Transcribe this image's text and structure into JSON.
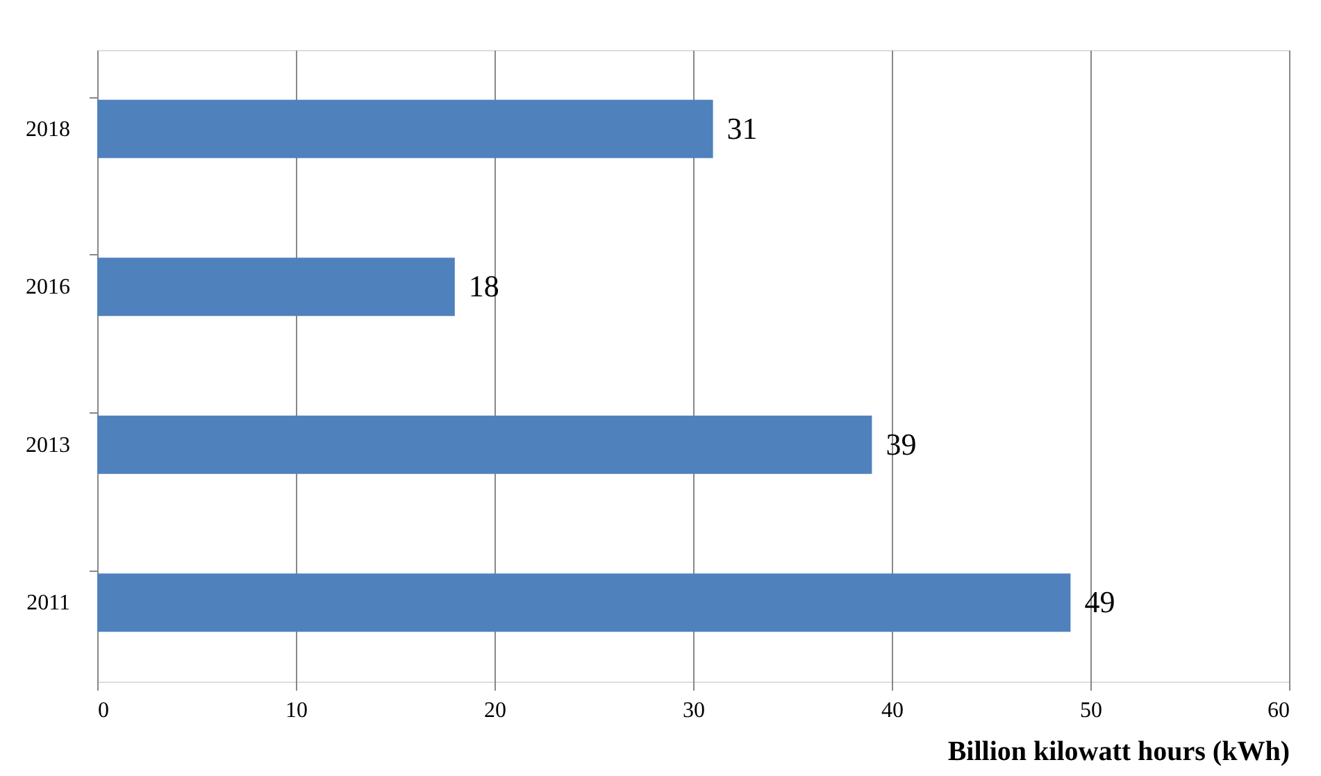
{
  "chart_data": {
    "type": "bar",
    "orientation": "horizontal",
    "categories": [
      "2018",
      "2016",
      "2013",
      "2011"
    ],
    "values": [
      31,
      18,
      39,
      49
    ],
    "color": "#4f81bd",
    "xlim": [
      0,
      60
    ],
    "xticks": [
      0,
      10,
      20,
      30,
      40,
      50,
      60
    ],
    "xlabel": "Billion kilowatt hours (kWh)",
    "grid": "x",
    "data_labels": true
  }
}
